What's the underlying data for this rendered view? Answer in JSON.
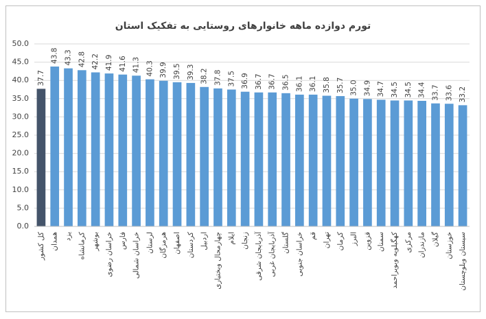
{
  "chart_data": {
    "type": "bar",
    "title": "تورم دوازده ماهه خانوارهای روستایی به تفکیک استان",
    "categories": [
      "کل کشور",
      "همدان",
      "یزد",
      "کرمانشاه",
      "بوشهر",
      "خراسان رضوی",
      "فارس",
      "خراسان شمالی",
      "لرستان",
      "هرمزگان",
      "اصفهان",
      "کردستان",
      "اردبیل",
      "چهارمحال وبختیاری",
      "ایلام",
      "زنجان",
      "آذربایجان شرقی",
      "آذربایجان غربی",
      "گلستان",
      "خراسان جنوبی",
      "قم",
      "تهران",
      "کرمان",
      "البرز",
      "قزوین",
      "سمنان",
      "کهگیلویه وبویراحمد",
      "مرکزی",
      "مازندران",
      "گیلان",
      "خوزستان",
      "سیستان وبلوچستان"
    ],
    "values": [
      37.7,
      43.8,
      43.3,
      42.8,
      42.2,
      41.9,
      41.6,
      41.3,
      40.3,
      39.9,
      39.5,
      39.3,
      38.2,
      37.8,
      37.5,
      36.9,
      36.7,
      36.7,
      36.5,
      36.1,
      36.1,
      35.8,
      35.7,
      35.0,
      34.9,
      34.7,
      34.5,
      34.5,
      34.4,
      33.7,
      33.6,
      33.2
    ],
    "value_labels": [
      "37.7",
      "43.8",
      "43.3",
      "42.8",
      "42.2",
      "41.9",
      "41.6",
      "41.3",
      "40.3",
      "39.9",
      "39.5",
      "39.3",
      "38.2",
      "37.8",
      "37.5",
      "36.9",
      "36.7",
      "36.7",
      "36.5",
      "36.1",
      "36.1",
      "35.8",
      "35.7",
      "35.0",
      "34.9",
      "34.7",
      "34.5",
      "34.5",
      "34.4",
      "33.7",
      "33.6",
      "33.2"
    ],
    "colors": [
      "#44546a",
      "#5b9bd5",
      "#5b9bd5",
      "#5b9bd5",
      "#5b9bd5",
      "#5b9bd5",
      "#5b9bd5",
      "#5b9bd5",
      "#5b9bd5",
      "#5b9bd5",
      "#5b9bd5",
      "#5b9bd5",
      "#5b9bd5",
      "#5b9bd5",
      "#5b9bd5",
      "#5b9bd5",
      "#5b9bd5",
      "#5b9bd5",
      "#5b9bd5",
      "#5b9bd5",
      "#5b9bd5",
      "#5b9bd5",
      "#5b9bd5",
      "#5b9bd5",
      "#5b9bd5",
      "#5b9bd5",
      "#5b9bd5",
      "#5b9bd5",
      "#5b9bd5",
      "#5b9bd5",
      "#5b9bd5",
      "#5b9bd5"
    ],
    "ylim": [
      0,
      50
    ],
    "yticks": [
      {
        "value": 0,
        "label": "0.0"
      },
      {
        "value": 5,
        "label": "5.0"
      },
      {
        "value": 10,
        "label": "10.0"
      },
      {
        "value": 15,
        "label": "15.0"
      },
      {
        "value": 20,
        "label": "20.0"
      },
      {
        "value": 25,
        "label": "25.0"
      },
      {
        "value": 30,
        "label": "30.0"
      },
      {
        "value": 35,
        "label": "35.0"
      },
      {
        "value": 40,
        "label": "40.0"
      },
      {
        "value": 45,
        "label": "45.0"
      },
      {
        "value": 50,
        "label": "50.0"
      }
    ],
    "grid": true
  }
}
